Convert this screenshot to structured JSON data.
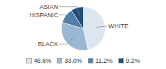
{
  "chart_data": {
    "type": "pie",
    "categories": [
      "WHITE",
      "BLACK",
      "HISPANIC",
      "ASIAN"
    ],
    "values": [
      46.6,
      33.0,
      11.2,
      9.2
    ],
    "value_labels": [
      "46.6%",
      "33.0%",
      "11.2%",
      "9.2%"
    ],
    "colors": [
      "#dce6f1",
      "#9ab7d3",
      "#4f7faa",
      "#1f4e79"
    ],
    "legend": "bottom"
  }
}
